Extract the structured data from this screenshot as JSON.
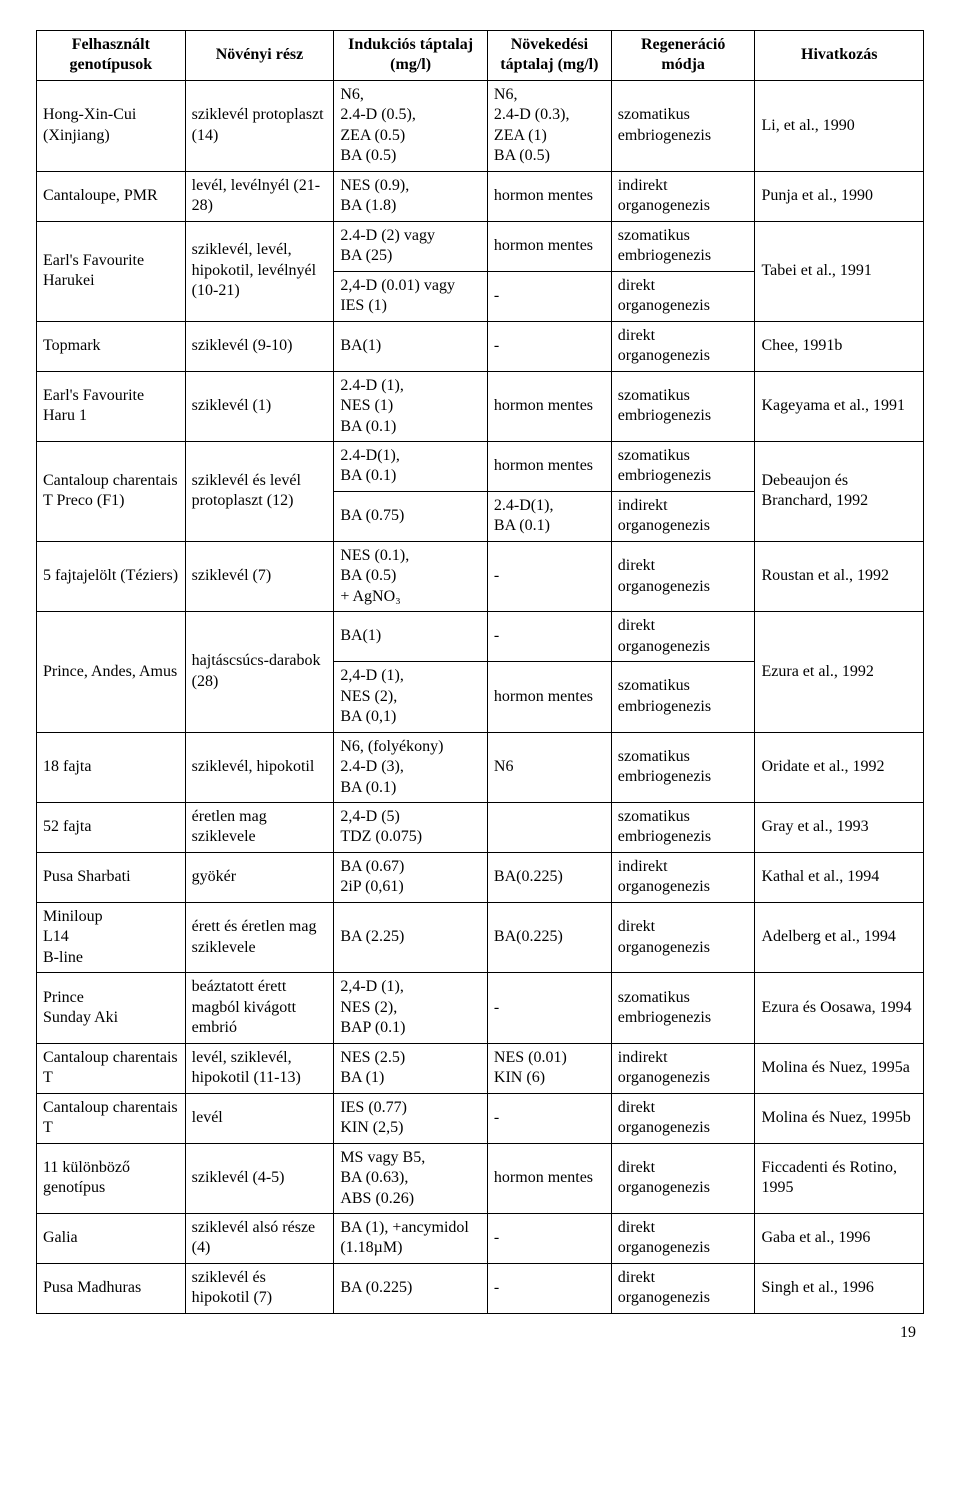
{
  "columns": [
    {
      "label": "Felhasznált genotípusok",
      "width": "15%"
    },
    {
      "label": "Növényi rész",
      "width": "15%"
    },
    {
      "label": "Indukciós táptalaj (mg/l)",
      "width": "15.5%"
    },
    {
      "label": "Növekedési táptalaj (mg/l)",
      "width": "12.5%"
    },
    {
      "label": "Regeneráció módja",
      "width": "14.5%"
    },
    {
      "label": "Hivatkozás",
      "width": "17%"
    }
  ],
  "rows": [
    {
      "cells": [
        {
          "text": "Hong-Xin-Cui (Xinjiang)"
        },
        {
          "text": "sziklevél protoplaszt (14)"
        },
        {
          "text": "N6,\n2.4-D (0.5),\nZEA (0.5)\nBA (0.5)"
        },
        {
          "text": "N6,\n2.4-D (0.3),\nZEA (1)\nBA (0.5)"
        },
        {
          "text": "szomatikus embriogenezis"
        },
        {
          "text": "Li, et al., 1990"
        }
      ]
    },
    {
      "cells": [
        {
          "text": "Cantaloupe, PMR"
        },
        {
          "text": "levél, levélnyél (21-28)"
        },
        {
          "text": "NES (0.9),\nBA (1.8)"
        },
        {
          "text": "hormon mentes"
        },
        {
          "text": "indirekt organogenezis"
        },
        {
          "text": "Punja et al., 1990"
        }
      ]
    },
    {
      "cells": [
        {
          "text": "Earl's Favourite Harukei",
          "rowspan": 2
        },
        {
          "text": "sziklevél, levél, hipokotil, levélnyél (10-21)",
          "rowspan": 2
        },
        {
          "text": "2.4-D (2) vagy\nBA (25)"
        },
        {
          "text": "hormon mentes"
        },
        {
          "text": "szomatikus embriogenezis"
        },
        {
          "text": "Tabei et al., 1991",
          "rowspan": 2
        }
      ]
    },
    {
      "cells": [
        {
          "text": "2,4-D (0.01) vagy\nIES (1)"
        },
        {
          "text": "-"
        },
        {
          "text": "direkt organogenezis"
        }
      ]
    },
    {
      "cells": [
        {
          "text": "Topmark"
        },
        {
          "text": "sziklevél (9-10)"
        },
        {
          "text": "BA(1)"
        },
        {
          "text": "-"
        },
        {
          "text": "direkt organogenezis"
        },
        {
          "text": "Chee, 1991b"
        }
      ]
    },
    {
      "cells": [
        {
          "text": "Earl's Favourite Haru 1"
        },
        {
          "text": "sziklevél (1)"
        },
        {
          "text": "2.4-D (1),\nNES (1)\nBA (0.1)"
        },
        {
          "text": "hormon mentes"
        },
        {
          "text": "szomatikus embriogenezis"
        },
        {
          "text": "Kageyama et al., 1991"
        }
      ]
    },
    {
      "cells": [
        {
          "text": "Cantaloup charentais T Preco (F1)",
          "rowspan": 2
        },
        {
          "text": "sziklevél és levél protoplaszt (12)",
          "rowspan": 2
        },
        {
          "text": "2.4-D(1),\nBA (0.1)"
        },
        {
          "text": "hormon mentes"
        },
        {
          "text": "szomatikus embriogenezis"
        },
        {
          "text": "Debeaujon és Branchard, 1992",
          "rowspan": 2
        }
      ]
    },
    {
      "cells": [
        {
          "text": "BA (0.75)"
        },
        {
          "text": "2.4-D(1),\nBA (0.1)"
        },
        {
          "text": "indirekt organogenezis"
        }
      ]
    },
    {
      "cells": [
        {
          "text": "5 fajtajelölt (Téziers)"
        },
        {
          "text": "sziklevél (7)"
        },
        {
          "text": "NES (0.1),\nBA (0.5)\n+ AgNO₃"
        },
        {
          "text": "-"
        },
        {
          "text": "direkt organogenezis"
        },
        {
          "text": "Roustan et al., 1992"
        }
      ]
    },
    {
      "cells": [
        {
          "text": "Prince, Andes, Amus",
          "rowspan": 2
        },
        {
          "text": "hajtáscsúcs-darabok (28)",
          "rowspan": 2
        },
        {
          "text": "BA(1)"
        },
        {
          "text": "-"
        },
        {
          "text": "direkt organogenezis"
        },
        {
          "text": "Ezura et al., 1992",
          "rowspan": 2
        }
      ]
    },
    {
      "cells": [
        {
          "text": "2,4-D (1),\nNES (2),\nBA (0,1)"
        },
        {
          "text": "hormon mentes"
        },
        {
          "text": "szomatikus embriogenezis"
        }
      ]
    },
    {
      "cells": [
        {
          "text": "18 fajta"
        },
        {
          "text": "sziklevél, hipokotil"
        },
        {
          "text": "N6, (folyékony)\n2.4-D (3),\nBA (0.1)"
        },
        {
          "text": "N6"
        },
        {
          "text": "szomatikus embriogenezis"
        },
        {
          "text": "Oridate et al., 1992"
        }
      ]
    },
    {
      "cells": [
        {
          "text": "52 fajta"
        },
        {
          "text": "éretlen mag sziklevele"
        },
        {
          "text": "2,4-D (5)\nTDZ (0.075)"
        },
        {
          "text": ""
        },
        {
          "text": "szomatikus embriogenezis"
        },
        {
          "text": "Gray et al., 1993"
        }
      ]
    },
    {
      "cells": [
        {
          "text": "Pusa Sharbati"
        },
        {
          "text": "gyökér"
        },
        {
          "text": "BA (0.67)\n2iP (0,61)"
        },
        {
          "text": "BA(0.225)"
        },
        {
          "text": "indirekt organogenezis"
        },
        {
          "text": "Kathal et al., 1994"
        }
      ]
    },
    {
      "cells": [
        {
          "text": "Miniloup\nL14\nB-line"
        },
        {
          "text": "érett és éretlen mag sziklevele"
        },
        {
          "text": "BA (2.25)"
        },
        {
          "text": "BA(0.225)"
        },
        {
          "text": "direkt organogenezis"
        },
        {
          "text": "Adelberg et al., 1994"
        }
      ]
    },
    {
      "cells": [
        {
          "text": "Prince\nSunday Aki"
        },
        {
          "text": "beáztatott érett magból kivágott embrió"
        },
        {
          "text": "2,4-D (1),\nNES (2),\nBAP (0.1)"
        },
        {
          "text": "-"
        },
        {
          "text": "szomatikus embriogenezis"
        },
        {
          "text": "Ezura és Oosawa, 1994"
        }
      ]
    },
    {
      "cells": [
        {
          "text": "Cantaloup charentais T"
        },
        {
          "text": "levél, sziklevél, hipokotil (11-13)"
        },
        {
          "text": "NES (2.5)\nBA (1)"
        },
        {
          "text": "NES (0.01)\nKIN (6)"
        },
        {
          "text": "indirekt organogenezis"
        },
        {
          "text": "Molina és Nuez, 1995a"
        }
      ]
    },
    {
      "cells": [
        {
          "text": "Cantaloup charentais T"
        },
        {
          "text": "levél"
        },
        {
          "text": "IES (0.77)\nKIN (2,5)"
        },
        {
          "text": "-"
        },
        {
          "text": "direkt organogenezis"
        },
        {
          "text": "Molina és Nuez, 1995b"
        }
      ]
    },
    {
      "cells": [
        {
          "text": "11 különböző genotípus"
        },
        {
          "text": "sziklevél (4-5)"
        },
        {
          "text": "MS vagy B5,\nBA (0.63),\nABS (0.26)"
        },
        {
          "text": "hormon mentes"
        },
        {
          "text": "direkt organogenezis"
        },
        {
          "text": "Ficcadenti és Rotino, 1995"
        }
      ]
    },
    {
      "cells": [
        {
          "text": "Galia"
        },
        {
          "text": "sziklevél alsó része (4)"
        },
        {
          "text": "BA (1), +ancymidol (1.18µM)"
        },
        {
          "text": "-"
        },
        {
          "text": "direkt organogenezis"
        },
        {
          "text": "Gaba et al., 1996"
        }
      ]
    },
    {
      "cells": [
        {
          "text": "Pusa Madhuras"
        },
        {
          "text": "sziklevél és hipokotil (7)"
        },
        {
          "text": "BA (0.225)"
        },
        {
          "text": "-"
        },
        {
          "text": "direkt organogenezis"
        },
        {
          "text": "Singh et al., 1996"
        }
      ]
    }
  ],
  "page_number": "19"
}
